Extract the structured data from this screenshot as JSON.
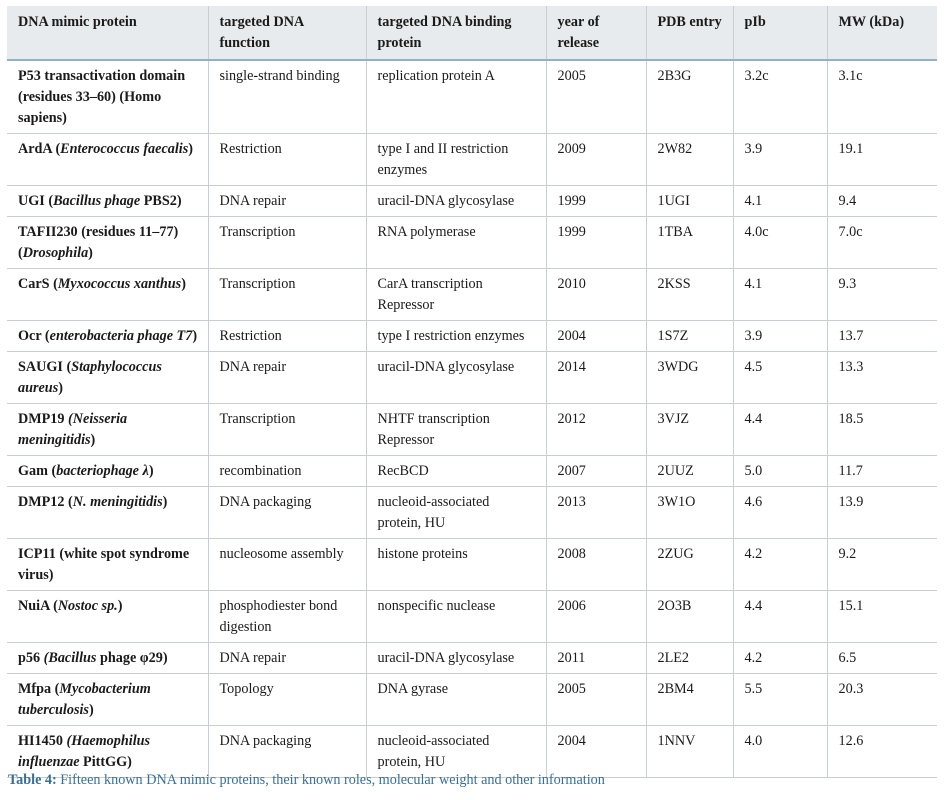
{
  "table": {
    "headers": [
      "DNA mimic protein",
      "targeted DNA function",
      "targeted DNA binding protein",
      "year of release",
      "PDB entry",
      "pIb",
      "MW (kDa)"
    ],
    "rows": [
      {
        "protein": [
          {
            "t": "P53 transactivation domain (residues 33–60) (Homo sapiens)"
          }
        ],
        "function": "single-strand binding",
        "binding_protein": "replication protein A",
        "year": "2005",
        "pdb": "2B3G",
        "pi": "3.2c",
        "mw": "3.1c"
      },
      {
        "protein": [
          {
            "t": "ArdA ("
          },
          {
            "t": "Enterococcus faecalis",
            "i": true
          },
          {
            "t": ")"
          }
        ],
        "function": "Restriction",
        "binding_protein": "type I and II restriction enzymes",
        "year": "2009",
        "pdb": "2W82",
        "pi": "3.9",
        "mw": "19.1"
      },
      {
        "protein": [
          {
            "t": "UGI ("
          },
          {
            "t": "Bacillus phage",
            "i": true
          },
          {
            "t": " PBS2)"
          }
        ],
        "function": "DNA repair",
        "binding_protein": "uracil-DNA glycosylase",
        "year": "1999",
        "pdb": "1UGI",
        "pi": "4.1",
        "mw": "9.4"
      },
      {
        "protein": [
          {
            "t": "TAFII230 (residues 11–77) ("
          },
          {
            "t": "Drosophila",
            "i": true
          },
          {
            "t": ")"
          }
        ],
        "function": "Transcription",
        "binding_protein": "RNA polymerase",
        "year": "1999",
        "pdb": "1TBA",
        "pi": "4.0c",
        "mw": "7.0c"
      },
      {
        "protein": [
          {
            "t": "CarS ("
          },
          {
            "t": "Myxococcus xanthus",
            "i": true
          },
          {
            "t": ")"
          }
        ],
        "function": "Transcription",
        "binding_protein": "CarA transcription Repressor",
        "year": "2010",
        "pdb": "2KSS",
        "pi": "4.1",
        "mw": "9.3"
      },
      {
        "protein": [
          {
            "t": "Ocr ("
          },
          {
            "t": "enterobacteria phage T7",
            "i": true
          },
          {
            "t": ")"
          }
        ],
        "function": "Restriction",
        "binding_protein": "type I restriction enzymes",
        "year": "2004",
        "pdb": "1S7Z",
        "pi": "3.9",
        "mw": "13.7"
      },
      {
        "protein": [
          {
            "t": "SAUGI ("
          },
          {
            "t": "Staphylococcus aureus",
            "i": true
          },
          {
            "t": ")"
          }
        ],
        "function": "DNA repair",
        "binding_protein": "uracil-DNA glycosylase",
        "year": "2014",
        "pdb": "3WDG",
        "pi": "4.5",
        "mw": "13.3"
      },
      {
        "protein": [
          {
            "t": "DMP19 "
          },
          {
            "t": "(Neisseria meningitidis",
            "i": true
          },
          {
            "t": ")"
          }
        ],
        "function": "Transcription",
        "binding_protein": "NHTF transcription Repressor",
        "year": "2012",
        "pdb": "3VJZ",
        "pi": "4.4",
        "mw": "18.5"
      },
      {
        "protein": [
          {
            "t": "Gam ("
          },
          {
            "t": "bacteriophage λ",
            "i": true
          },
          {
            "t": ")"
          }
        ],
        "function": "recombination",
        "binding_protein": "RecBCD",
        "year": "2007",
        "pdb": "2UUZ",
        "pi": "5.0",
        "mw": "11.7"
      },
      {
        "protein": [
          {
            "t": "DMP12 ("
          },
          {
            "t": "N. meningitidis",
            "i": true
          },
          {
            "t": ")"
          }
        ],
        "function": "DNA packaging",
        "binding_protein": "nucleoid-associated protein, HU",
        "year": "2013",
        "pdb": "3W1O",
        "pi": "4.6",
        "mw": "13.9"
      },
      {
        "protein": [
          {
            "t": "ICP11 (white spot syndrome virus)"
          }
        ],
        "function": "nucleosome assembly",
        "binding_protein": "histone proteins",
        "year": "2008",
        "pdb": "2ZUG",
        "pi": "4.2",
        "mw": "9.2"
      },
      {
        "protein": [
          {
            "t": "NuiA ("
          },
          {
            "t": "Nostoc sp.",
            "i": true
          },
          {
            "t": ")"
          }
        ],
        "function": "phosphodiester bond digestion",
        "binding_protein": "nonspecific nuclease",
        "year": "2006",
        "pdb": "2O3B",
        "pi": "4.4",
        "mw": "15.1"
      },
      {
        "protein": [
          {
            "t": "p56 "
          },
          {
            "t": "(Bacillus",
            "i": true
          },
          {
            "t": " phage φ29)"
          }
        ],
        "function": "DNA repair",
        "binding_protein": "uracil-DNA glycosylase",
        "year": "2011",
        "pdb": "2LE2",
        "pi": "4.2",
        "mw": "6.5"
      },
      {
        "protein": [
          {
            "t": "Mfpa ("
          },
          {
            "t": "Mycobacterium tuberculosis",
            "i": true
          },
          {
            "t": ")"
          }
        ],
        "function": "Topology",
        "binding_protein": "DNA gyrase",
        "year": "2005",
        "pdb": "2BM4",
        "pi": "5.5",
        "mw": "20.3"
      },
      {
        "protein": [
          {
            "t": "HI1450 "
          },
          {
            "t": "(Haemophilus influenzae",
            "i": true
          },
          {
            "t": " PittGG)"
          }
        ],
        "function": "DNA packaging",
        "binding_protein": "nucleoid-associated protein, HU",
        "year": "2004",
        "pdb": "1NNV",
        "pi": "4.0",
        "mw": "12.6"
      }
    ]
  },
  "caption": {
    "label": "Table 4:",
    "text": " Fifteen known DNA mimic proteins, their known roles, molecular weight and other information"
  }
}
